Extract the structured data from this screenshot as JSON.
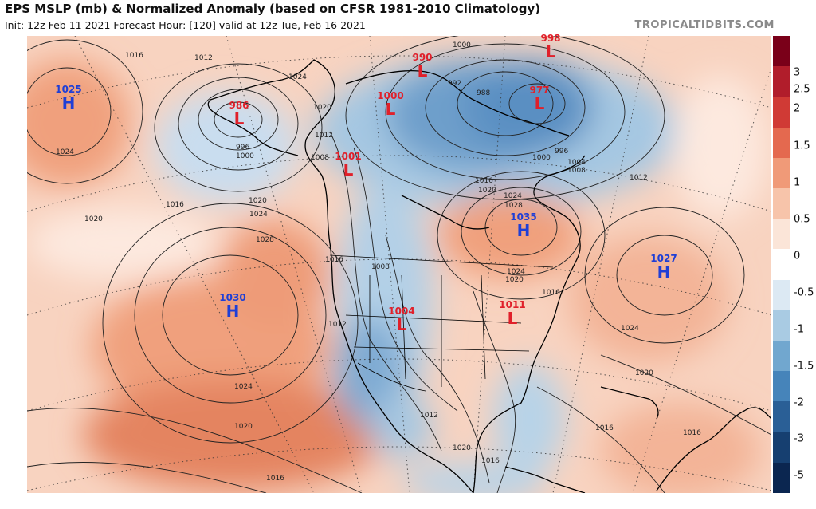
{
  "header": {
    "title": "EPS MSLP (mb) & Normalized Anomaly (based on CFSR 1981-2010 Climatology)",
    "subtitle": "Init: 12z Feb 11 2021   Forecast Hour: [120]   valid at 12z Tue, Feb 16 2021",
    "credit": "TROPICALTIDBITS.COM"
  },
  "colors": {
    "low_text": "#e0202a",
    "high_text": "#1f3fd6",
    "ocean_bg": "#fbe0d2",
    "land_line": "#000000"
  },
  "colorbar": {
    "labels": [
      "3",
      "2.5",
      "2",
      "1.5",
      "1",
      "0.5",
      "0",
      "-0.5",
      "-1",
      "-1.5",
      "-2",
      "-3",
      "-5"
    ],
    "colors": [
      "#7a0019",
      "#b11d2b",
      "#d03a35",
      "#e4694f",
      "#f09a78",
      "#f7c4aa",
      "#fbe5d8",
      "#ffffff",
      "#dce9f3",
      "#a9cbe3",
      "#71a7cf",
      "#4684ba",
      "#2a5f96",
      "#163f70",
      "#0b2650"
    ]
  },
  "pressure_centers": [
    {
      "type": "H",
      "value": "1025"
    },
    {
      "type": "L",
      "value": "986"
    },
    {
      "type": "L",
      "value": "990"
    },
    {
      "type": "L",
      "value": "998"
    },
    {
      "type": "L",
      "value": "1000"
    },
    {
      "type": "L",
      "value": "977"
    },
    {
      "type": "L",
      "value": "1001"
    },
    {
      "type": "H",
      "value": "1035"
    },
    {
      "type": "H",
      "value": "1027"
    },
    {
      "type": "H",
      "value": "1030"
    },
    {
      "type": "L",
      "value": "1004"
    },
    {
      "type": "L",
      "value": "1011"
    }
  ],
  "isobar_labels": [
    "1016",
    "1012",
    "1024",
    "1020",
    "1016",
    "1024",
    "1020",
    "1024",
    "1028",
    "996",
    "1000",
    "1020",
    "1012",
    "1008",
    "1000",
    "992",
    "988",
    "996",
    "1000",
    "1004",
    "1008",
    "1012",
    "1016",
    "1020",
    "1024",
    "1028",
    "1016",
    "1008",
    "1012",
    "1024",
    "1020",
    "1016",
    "1024",
    "1020",
    "1016",
    "1016",
    "1012",
    "1020",
    "1016",
    "1024",
    "1020",
    "1016"
  ]
}
